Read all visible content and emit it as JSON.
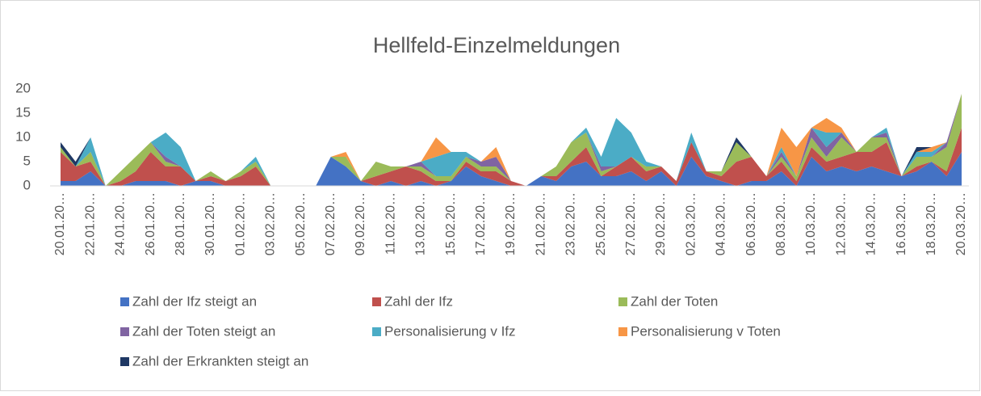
{
  "chart_data": {
    "type": "stacked_area",
    "title": "Hellfeld-Einzelmeldungen",
    "categories": [
      "20.01.20…",
      null,
      "22.01.20…",
      null,
      "24.01.20…",
      null,
      "26.01.20…",
      null,
      "28.01.20…",
      null,
      "30.01.20…",
      null,
      "01.02.20…",
      null,
      "03.02.20…",
      null,
      "05.02.20…",
      null,
      "07.02.20…",
      null,
      "09.02.20…",
      null,
      "11.02.20…",
      null,
      "13.02.20…",
      null,
      "15.02.20…",
      null,
      "17.02.20…",
      null,
      "19.02.20…",
      null,
      "21.02.20…",
      null,
      "23.02.20…",
      null,
      "25.02.20…",
      null,
      "27.02.20…",
      null,
      "29.02.20…",
      null,
      "02.03.20…",
      null,
      "04.03.20…",
      null,
      "06.03.20…",
      null,
      "08.03.20…",
      null,
      "10.03.20…",
      null,
      "12.03.20…",
      null,
      "14.03.20…",
      null,
      "16.03.20…",
      null,
      "18.03.20…",
      null,
      "20.03.20…"
    ],
    "series": [
      {
        "name": "Zahl der Ifz steigt an",
        "color": "#4472c4",
        "values": [
          1,
          1,
          3,
          0,
          0,
          1,
          1,
          1,
          0,
          1,
          1,
          0,
          0,
          0,
          0,
          0,
          0,
          0,
          6,
          4,
          1,
          0,
          1,
          0,
          1,
          0,
          1,
          4,
          2,
          1,
          0,
          0,
          2,
          1,
          4,
          5,
          2,
          2,
          3,
          1,
          3,
          0,
          6,
          2,
          1,
          0,
          1,
          1,
          3,
          0,
          6,
          3,
          4,
          3,
          4,
          3,
          2,
          3,
          5,
          2,
          7
        ]
      },
      {
        "name": "Zahl der Ifz",
        "color": "#c0504d",
        "values": [
          6,
          3,
          2,
          0,
          1,
          2,
          6,
          3,
          4,
          0,
          1,
          1,
          2,
          4,
          0,
          0,
          0,
          0,
          0,
          0,
          0,
          2,
          2,
          4,
          2,
          1,
          0,
          1,
          1,
          2,
          1,
          0,
          0,
          1,
          1,
          3,
          0,
          2,
          3,
          2,
          1,
          1,
          3,
          1,
          1,
          5,
          5,
          1,
          2,
          1,
          2,
          2,
          2,
          4,
          3,
          6,
          0,
          1,
          0,
          1,
          5
        ]
      },
      {
        "name": "Zahl der Toten",
        "color": "#9bbb59",
        "values": [
          1,
          0,
          2,
          0,
          2,
          3,
          2,
          1,
          0,
          0,
          1,
          0,
          1,
          1,
          0,
          0,
          0,
          0,
          0,
          2,
          0,
          3,
          1,
          0,
          1,
          1,
          1,
          1,
          1,
          1,
          0,
          0,
          0,
          2,
          4,
          3,
          1,
          0,
          0,
          1,
          0,
          0,
          0,
          0,
          1,
          4,
          0,
          0,
          1,
          1,
          2,
          1,
          4,
          0,
          3,
          1,
          0,
          2,
          1,
          5,
          7
        ]
      },
      {
        "name": "Zahl der Toten steigt an",
        "color": "#8064a2",
        "values": [
          0,
          0,
          0,
          0,
          0,
          0,
          0,
          1,
          0,
          0,
          0,
          0,
          0,
          0,
          0,
          0,
          0,
          0,
          0,
          0,
          0,
          0,
          0,
          0,
          1,
          0,
          0,
          0,
          1,
          2,
          0,
          0,
          0,
          0,
          0,
          0,
          1,
          0,
          0,
          0,
          0,
          0,
          0,
          0,
          0,
          0,
          0,
          0,
          1,
          0,
          2,
          2,
          1,
          0,
          0,
          1,
          0,
          0,
          0,
          1,
          0
        ]
      },
      {
        "name": "Personalisierung v Ifz",
        "color": "#4bacc6",
        "values": [
          0,
          0,
          3,
          0,
          0,
          0,
          0,
          5,
          4,
          0,
          0,
          0,
          0,
          1,
          0,
          0,
          0,
          0,
          0,
          0,
          0,
          0,
          0,
          0,
          0,
          4,
          5,
          1,
          0,
          0,
          0,
          0,
          0,
          0,
          0,
          1,
          2,
          10,
          5,
          1,
          0,
          0,
          2,
          0,
          0,
          0,
          0,
          0,
          1,
          0,
          0,
          3,
          0,
          0,
          0,
          1,
          0,
          1,
          1,
          0,
          0
        ]
      },
      {
        "name": "Personalisierung v Toten",
        "color": "#f79646",
        "values": [
          0,
          0,
          0,
          0,
          0,
          0,
          0,
          0,
          0,
          0,
          0,
          0,
          0,
          0,
          0,
          0,
          0,
          0,
          0,
          1,
          0,
          0,
          0,
          0,
          0,
          4,
          0,
          0,
          0,
          2,
          0,
          0,
          0,
          0,
          0,
          0,
          0,
          0,
          0,
          0,
          0,
          0,
          0,
          0,
          0,
          0,
          0,
          0,
          4,
          6,
          0,
          3,
          1,
          0,
          0,
          0,
          0,
          0,
          1,
          0,
          0
        ]
      },
      {
        "name": "Zahl der Erkrankten steigt an",
        "color": "#1f3864",
        "values": [
          1,
          1,
          0,
          0,
          0,
          0,
          0,
          0,
          0,
          0,
          0,
          0,
          0,
          0,
          0,
          0,
          0,
          0,
          0,
          0,
          0,
          0,
          0,
          0,
          0,
          0,
          0,
          0,
          0,
          0,
          0,
          0,
          0,
          0,
          0,
          0,
          0,
          0,
          0,
          0,
          0,
          0,
          0,
          0,
          0,
          1,
          0,
          0,
          0,
          0,
          0,
          0,
          0,
          0,
          0,
          0,
          0,
          1,
          0,
          0,
          0
        ]
      }
    ],
    "ylim": [
      0,
      20
    ],
    "yticks": [
      0,
      5,
      10,
      15,
      20
    ],
    "grid": false,
    "legend": "bottom"
  }
}
